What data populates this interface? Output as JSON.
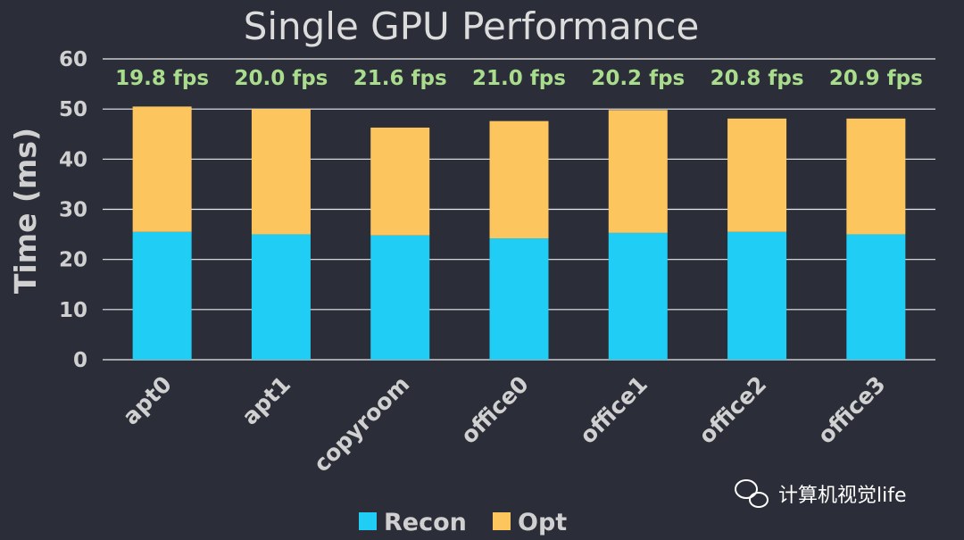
{
  "chart_data": {
    "type": "bar",
    "stacked": true,
    "title": "Single GPU Performance",
    "ylabel": "Time (ms)",
    "xlabel": "",
    "ylim": [
      0,
      60
    ],
    "yticks": [
      0,
      10,
      20,
      30,
      40,
      50,
      60
    ],
    "grid": true,
    "legend_position": "bottom",
    "categories": [
      "apt0",
      "apt1",
      "copyroom",
      "office0",
      "office1",
      "office2",
      "office3"
    ],
    "series": [
      {
        "name": "Recon",
        "color": "#1fcdf5",
        "values": [
          25.5,
          25.0,
          24.8,
          24.2,
          25.3,
          25.5,
          25.0
        ]
      },
      {
        "name": "Opt",
        "color": "#fcc55e",
        "values": [
          25.0,
          25.0,
          21.5,
          23.4,
          24.5,
          22.6,
          23.1
        ]
      }
    ],
    "annotations": [
      "19.8 fps",
      "20.0 fps",
      "21.6 fps",
      "21.0 fps",
      "20.2 fps",
      "20.8 fps",
      "20.9 fps"
    ]
  },
  "watermark": {
    "text": "计算机视觉life",
    "icon": "wechat-icon"
  },
  "colors": {
    "background": "#2b2e38",
    "grid": "#ffffff",
    "fps_label": "#a9dc8c"
  }
}
